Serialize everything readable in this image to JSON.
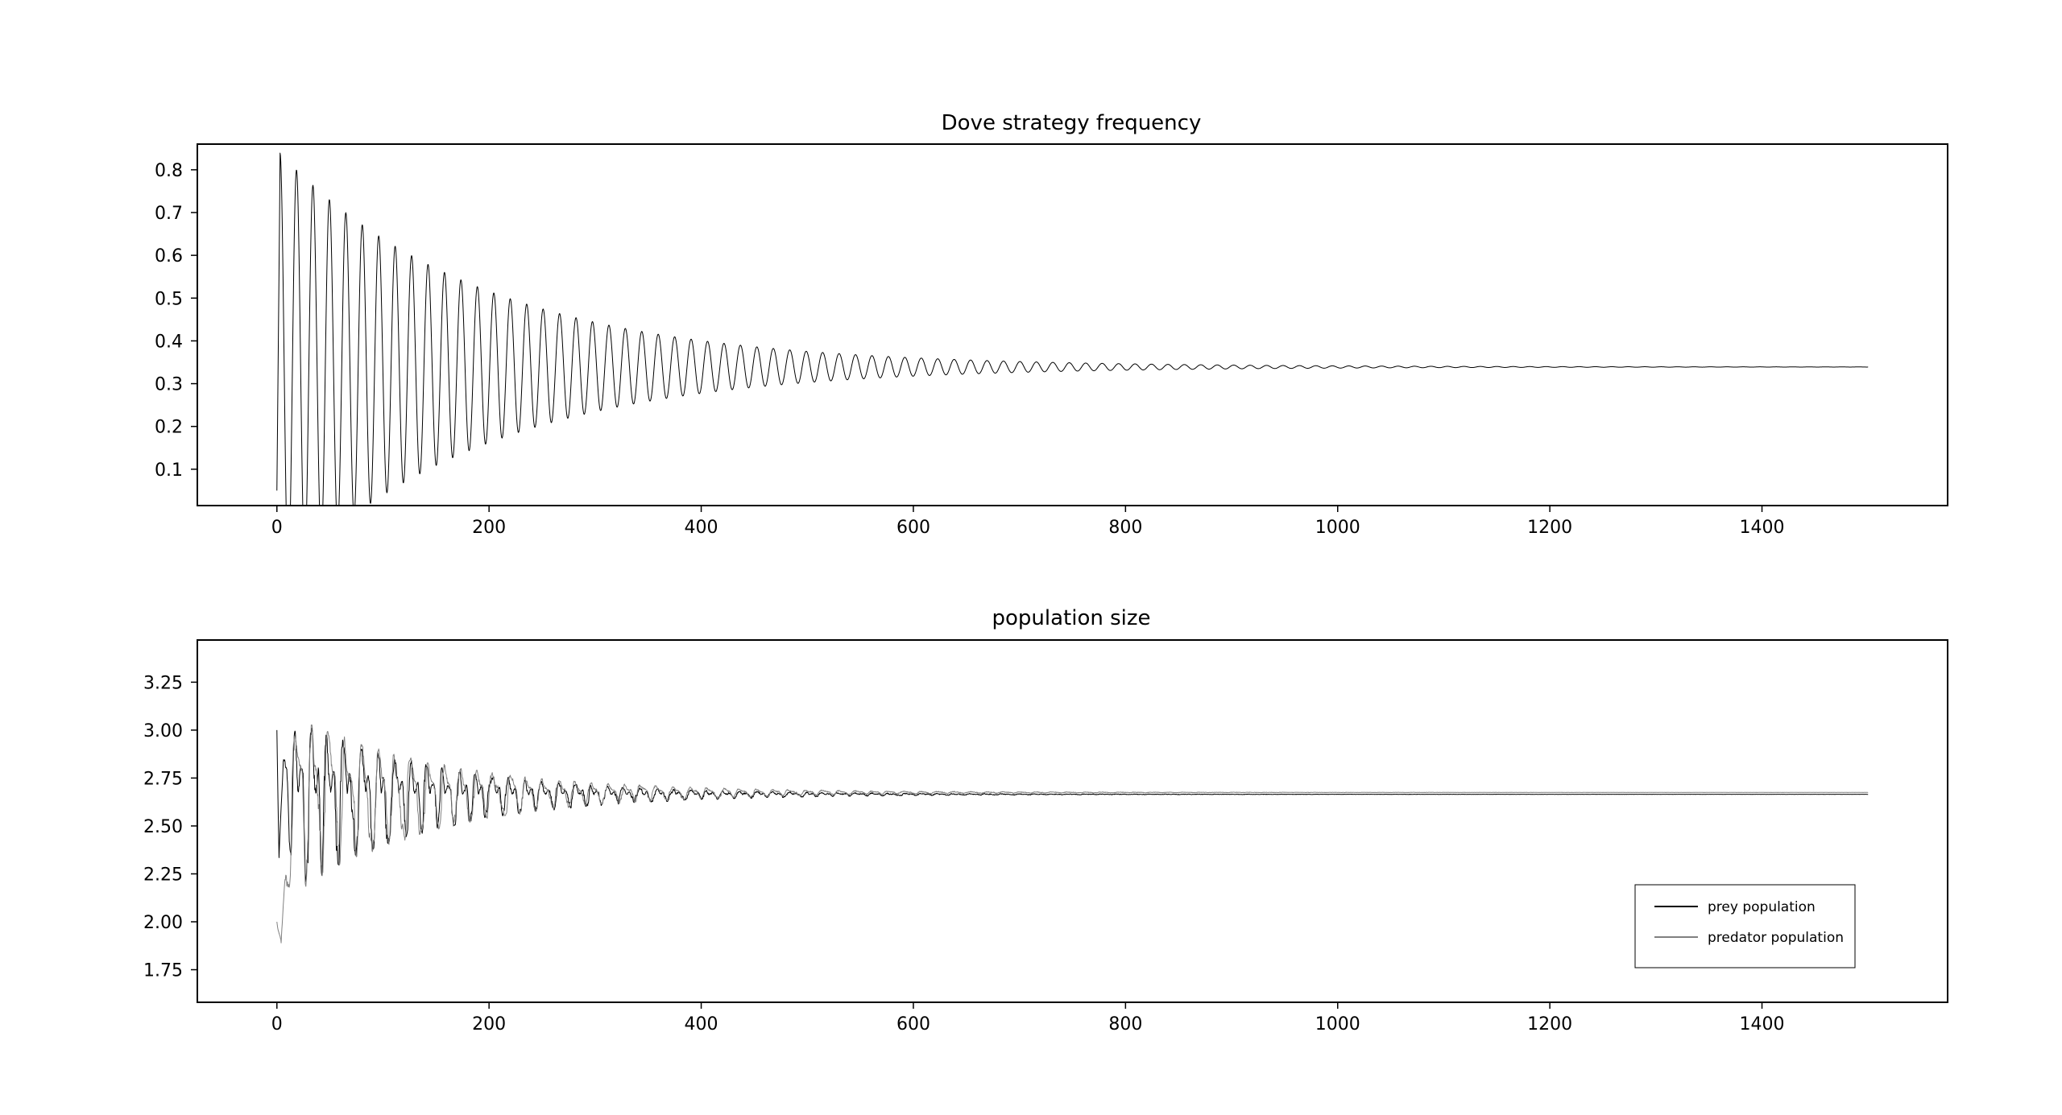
{
  "chart_data": [
    {
      "type": "line",
      "title": "Dove strategy frequency",
      "xlabel": "",
      "ylabel": "",
      "xlim": [
        -75,
        1575
      ],
      "ylim": [
        0.015,
        0.86
      ],
      "xticks": [
        0,
        200,
        400,
        600,
        800,
        1000,
        1200,
        1400
      ],
      "yticks": [
        0.1,
        0.2,
        0.3,
        0.4,
        0.5,
        0.6,
        0.7,
        0.8
      ],
      "ytick_format": 1,
      "grid": false,
      "legend": null,
      "series": [
        {
          "color": "#000000",
          "stroke_width": 1.0,
          "model": {
            "kind": "damped_oscillation",
            "x_start": 0,
            "x_end": 1500,
            "start_value": 0.05,
            "equilibrium": 0.339,
            "amplitude": 0.5,
            "period": 15.5,
            "decay_time": 190,
            "phase_x": 3,
            "samples_per_unit": 3
          }
        }
      ]
    },
    {
      "type": "line",
      "title": "population size",
      "xlabel": "",
      "ylabel": "",
      "xlim": [
        -75,
        1575
      ],
      "ylim": [
        1.58,
        3.47
      ],
      "xticks": [
        0,
        200,
        400,
        600,
        800,
        1000,
        1200,
        1400
      ],
      "yticks": [
        1.75,
        2.0,
        2.25,
        2.5,
        2.75,
        3.0,
        3.25
      ],
      "ytick_format": 2,
      "grid": false,
      "legend": "lower right",
      "series": [
        {
          "name": "prey population",
          "color": "#000000",
          "stroke_width": 1.0,
          "model": {
            "kind": "noisy_oscillation",
            "x_start": 0,
            "x_end": 1500,
            "start_value": 3.0,
            "equilibrium": 2.665,
            "amplitude": 0.6,
            "period": 15.5,
            "decay_time": 130,
            "harmonic": 0.45,
            "transient": [
              [
                0,
                3.0
              ],
              [
                2,
                2.25
              ],
              [
                6,
                2.87
              ],
              [
                10,
                2.8
              ],
              [
                15,
                2.7
              ],
              [
                20,
                2.6
              ]
            ],
            "samples_per_unit": 3
          }
        },
        {
          "name": "predator population",
          "color": "#808080",
          "stroke_width": 1.0,
          "model": {
            "kind": "noisy_oscillation",
            "x_start": 0,
            "x_end": 1500,
            "start_value": 2.0,
            "equilibrium": 2.675,
            "amplitude": 0.62,
            "period": 15.5,
            "decay_time": 135,
            "harmonic": 0.3,
            "transient": [
              [
                0,
                2.0
              ],
              [
                4,
                1.65
              ],
              [
                10,
                2.1
              ],
              [
                16,
                2.6
              ],
              [
                22,
                3.1
              ]
            ],
            "samples_per_unit": 3
          }
        }
      ]
    }
  ]
}
